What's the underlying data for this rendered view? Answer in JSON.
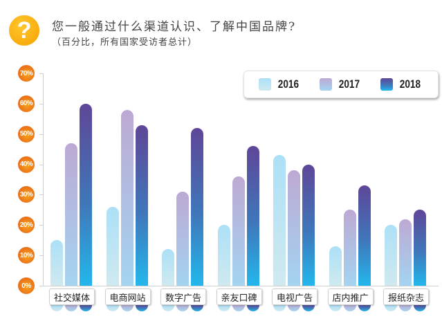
{
  "header": {
    "icon": "question-mark-icon",
    "title": "您一般通过什么渠道认识、了解中国品牌?",
    "subtitle": "（百分比，所有国家受访者总计）"
  },
  "legend": [
    {
      "label": "2016",
      "color_top": "#ace0f7",
      "color_bottom": "#cfe9ef"
    },
    {
      "label": "2017",
      "color_top": "#bda9d3",
      "color_bottom": "#a3d4f1"
    },
    {
      "label": "2018",
      "color_top": "#5f4698",
      "color_bottom": "#23b7ec"
    }
  ],
  "yticks": [
    "70%",
    "60%",
    "50%",
    "40%",
    "30%",
    "20%",
    "10%",
    "0%"
  ],
  "chart_data": {
    "type": "bar",
    "title": "您一般通过什么渠道认识、了解中国品牌?",
    "subtitle": "（百分比，所有国家受访者总计）",
    "xlabel": "",
    "ylabel": "",
    "ylim": [
      0,
      70
    ],
    "yticks": [
      0,
      10,
      20,
      30,
      40,
      50,
      60,
      70
    ],
    "tick_format": "percent",
    "grid": false,
    "legend_position": "top-right",
    "categories": [
      "社交媒体",
      "电商网站",
      "数字广告",
      "亲友口碑",
      "电视广告",
      "店内推广",
      "报纸杂志"
    ],
    "series": [
      {
        "name": "2016",
        "values": [
          15,
          26,
          12,
          20,
          43,
          13,
          20
        ]
      },
      {
        "name": "2017",
        "values": [
          47,
          58,
          31,
          36,
          38,
          25,
          22
        ]
      },
      {
        "name": "2018",
        "values": [
          60,
          53,
          52,
          46,
          40,
          33,
          25
        ]
      }
    ]
  }
}
